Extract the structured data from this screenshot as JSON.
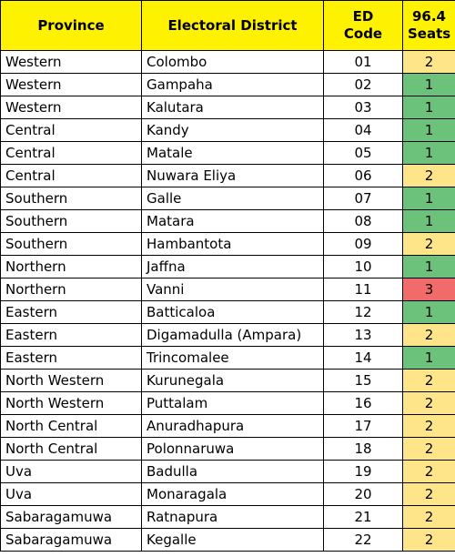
{
  "headers": {
    "province": "Province",
    "district": "Electoral District",
    "code_line1": "ED",
    "code_line2": "Code",
    "seats_line1": "96.4",
    "seats_line2": "Seats"
  },
  "colors": {
    "header_bg": "#fff200",
    "seats_1": "#6dc27b",
    "seats_2": "#ffe58a",
    "seats_3": "#f26b6b"
  },
  "rows": [
    {
      "province": "Western",
      "district": "Colombo",
      "code": "01",
      "seats": "2"
    },
    {
      "province": "Western",
      "district": "Gampaha",
      "code": "02",
      "seats": "1"
    },
    {
      "province": "Western",
      "district": "Kalutara",
      "code": "03",
      "seats": "1"
    },
    {
      "province": "Central",
      "district": "Kandy",
      "code": "04",
      "seats": "1"
    },
    {
      "province": "Central",
      "district": "Matale",
      "code": "05",
      "seats": "1"
    },
    {
      "province": "Central",
      "district": "Nuwara Eliya",
      "code": "06",
      "seats": "2"
    },
    {
      "province": "Southern",
      "district": "Galle",
      "code": "07",
      "seats": "1"
    },
    {
      "province": "Southern",
      "district": "Matara",
      "code": "08",
      "seats": "1"
    },
    {
      "province": "Southern",
      "district": "Hambantota",
      "code": "09",
      "seats": "2"
    },
    {
      "province": "Northern",
      "district": "Jaffna",
      "code": "10",
      "seats": "1"
    },
    {
      "province": "Northern",
      "district": "Vanni",
      "code": "11",
      "seats": "3"
    },
    {
      "province": "Eastern",
      "district": "Batticaloa",
      "code": "12",
      "seats": "1"
    },
    {
      "province": "Eastern",
      "district": "Digamadulla (Ampara)",
      "code": "13",
      "seats": "2"
    },
    {
      "province": "Eastern",
      "district": "Trincomalee",
      "code": "14",
      "seats": "1"
    },
    {
      "province": "North Western",
      "district": "Kurunegala",
      "code": "15",
      "seats": "2"
    },
    {
      "province": "North Western",
      "district": "Puttalam",
      "code": "16",
      "seats": "2"
    },
    {
      "province": "North Central",
      "district": "Anuradhapura",
      "code": "17",
      "seats": "2"
    },
    {
      "province": "North Central",
      "district": "Polonnaruwa",
      "code": "18",
      "seats": "2"
    },
    {
      "province": "Uva",
      "district": "Badulla",
      "code": "19",
      "seats": "2"
    },
    {
      "province": "Uva",
      "district": "Monaragala",
      "code": "20",
      "seats": "2"
    },
    {
      "province": "Sabaragamuwa",
      "district": "Ratnapura",
      "code": "21",
      "seats": "2"
    },
    {
      "province": "Sabaragamuwa",
      "district": "Kegalle",
      "code": "22",
      "seats": "2"
    }
  ]
}
